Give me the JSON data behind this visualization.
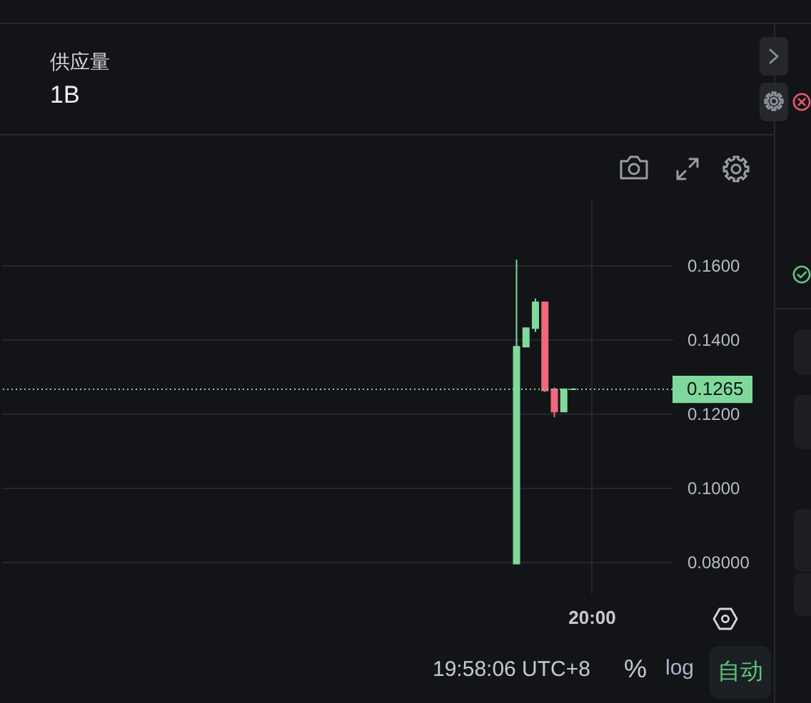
{
  "chart_data": [
    {
      "type": "other",
      "annotations": [
        "供应量",
        "1B"
      ]
    },
    {
      "type": "candlestick",
      "categories": [
        null,
        null,
        null,
        null,
        null,
        null,
        null,
        null,
        null,
        null,
        null,
        null,
        null,
        null,
        null,
        null,
        null,
        null,
        null,
        null,
        null,
        null,
        null,
        null,
        null,
        null,
        null,
        null,
        null,
        null,
        null,
        null,
        null,
        null,
        null,
        null,
        null,
        null,
        null,
        null,
        null,
        null,
        null,
        null,
        null,
        null,
        null,
        null,
        null,
        null,
        null,
        null,
        null,
        null,
        null,
        null,
        null,
        null,
        null,
        null,
        null,
        null,
        "20:00",
        null,
        null,
        null,
        null,
        null,
        null,
        null,
        null
      ],
      "ohlc": [
        null,
        null,
        null,
        null,
        null,
        null,
        null,
        null,
        null,
        null,
        null,
        null,
        null,
        null,
        null,
        null,
        null,
        null,
        null,
        null,
        null,
        null,
        null,
        null,
        null,
        null,
        null,
        null,
        null,
        null,
        null,
        null,
        null,
        null,
        null,
        null,
        null,
        null,
        null,
        null,
        null,
        null,
        null,
        null,
        null,
        null,
        null,
        null,
        null,
        null,
        null,
        null,
        null,
        null,
        [
          0.0795,
          0.1615,
          0.0795,
          0.138
        ],
        [
          0.138,
          0.143,
          0.138,
          0.143
        ],
        [
          0.143,
          0.151,
          0.142,
          0.15
        ],
        [
          0.15,
          0.15,
          0.1258,
          0.1262
        ],
        [
          0.1265,
          0.127,
          0.119,
          0.1205
        ],
        [
          0.1205,
          0.1265,
          0.1205,
          0.1265
        ],
        [
          0.1265,
          0.1268,
          0.1265,
          0.1265
        ],
        null,
        null,
        null,
        null,
        null,
        null,
        null,
        null,
        null,
        null
      ],
      "colors": [
        null,
        null,
        null,
        null,
        null,
        null,
        null,
        null,
        null,
        null,
        null,
        null,
        null,
        null,
        null,
        null,
        null,
        null,
        null,
        null,
        null,
        null,
        null,
        null,
        null,
        null,
        null,
        null,
        null,
        null,
        null,
        null,
        null,
        null,
        null,
        null,
        null,
        null,
        null,
        null,
        null,
        null,
        null,
        null,
        null,
        null,
        null,
        null,
        null,
        null,
        null,
        null,
        null,
        null,
        "#7fd99d",
        "#7fd99d",
        "#7fd99d",
        "#f0687c",
        "#f0687c",
        "#7fd99d",
        "#7fd99d",
        null,
        null,
        null,
        null,
        null,
        null,
        null,
        null,
        null,
        null
      ],
      "ylim": [
        0.0715,
        0.1777
      ],
      "yticks": [
        {
          "value": 0.16,
          "label": "0.1600"
        },
        {
          "value": 0.14,
          "label": "0.1400"
        },
        {
          "value": 0.12,
          "label": "0.1200"
        },
        {
          "value": 0.1,
          "label": "0.1000"
        },
        {
          "value": 0.08,
          "label": "0.08000"
        }
      ],
      "grid": true,
      "ref_lines": [
        {
          "axis": "y",
          "value": 0.1265,
          "label": "0.1265",
          "color": "#7fd99d",
          "line_style": "dotted"
        }
      ],
      "annotations": [
        "19:58:06 UTC+8",
        "%",
        "log",
        "自动"
      ]
    }
  ]
}
